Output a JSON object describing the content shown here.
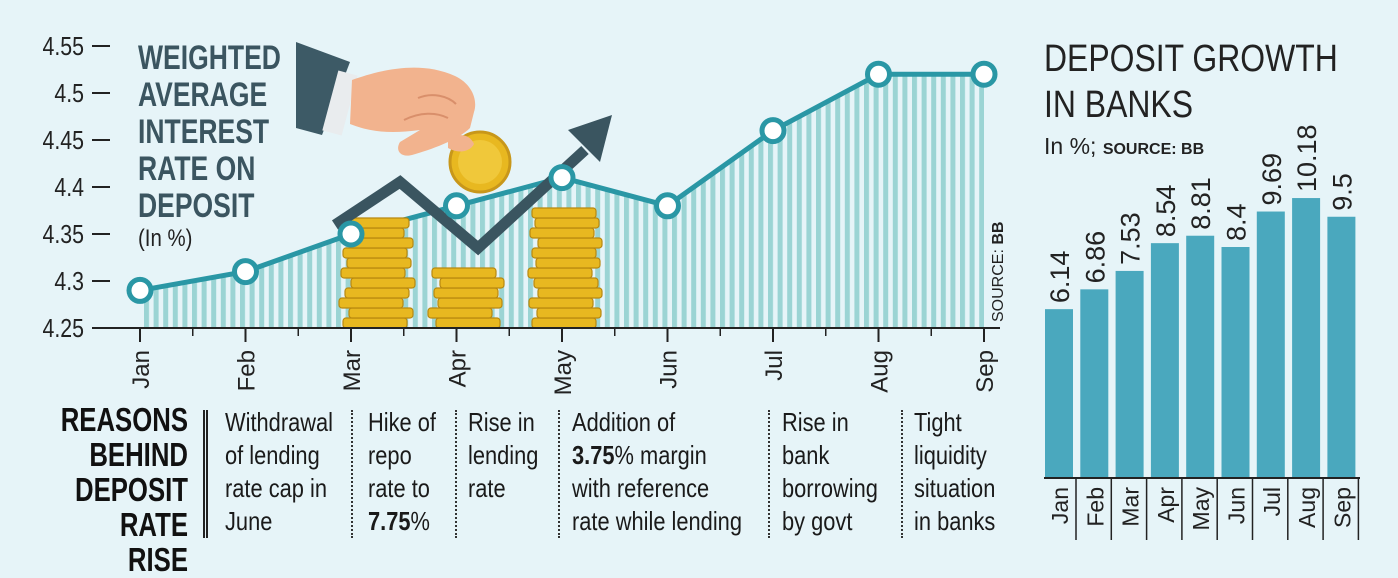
{
  "chart_data": [
    {
      "type": "area",
      "title": "WEIGHTED AVERAGE INTEREST RATE ON DEPOSIT",
      "title_lines": [
        "WEIGHTED",
        "AVERAGE",
        "INTEREST",
        "RATE ON",
        "DEPOSIT"
      ],
      "subtitle": "(In %)",
      "source": "SOURCE: BB",
      "source_prefix": "SOURCE:",
      "source_name": "BB",
      "categories": [
        "Jan",
        "Feb",
        "Mar",
        "Apr",
        "May",
        "Jun",
        "Jul",
        "Aug",
        "Sep"
      ],
      "values": [
        4.29,
        4.31,
        4.35,
        4.38,
        4.41,
        4.38,
        4.46,
        4.52,
        4.52
      ],
      "yticks": [
        "4.25",
        "4.3",
        "4.35",
        "4.4",
        "4.45",
        "4.5",
        "4.55"
      ],
      "ylim": [
        4.25,
        4.55
      ],
      "grid": false,
      "colors": {
        "line": "#2a97a5",
        "fill_stripe": "#9bd4d4",
        "marker_fill": "#ffffff"
      }
    },
    {
      "type": "bar",
      "title": "DEPOSIT GROWTH IN BANKS",
      "title_lines": [
        "DEPOSIT GROWTH",
        "IN BANKS"
      ],
      "subtitle_prefix": "In %;",
      "source": "SOURCE: BB",
      "categories": [
        "Jan",
        "Feb",
        "Mar",
        "Apr",
        "May",
        "Jun",
        "Jul",
        "Aug",
        "Sep"
      ],
      "values": [
        6.14,
        6.86,
        7.53,
        8.54,
        8.81,
        8.4,
        9.69,
        10.18,
        9.5
      ],
      "value_labels": [
        "6.14",
        "6.86",
        "7.53",
        "8.54",
        "8.81",
        "8.4",
        "9.69",
        "10.18",
        "9.5"
      ],
      "ylim": [
        0,
        12
      ],
      "grid": false,
      "colors": {
        "bar": "#4aa8be"
      }
    }
  ],
  "reasons": {
    "title_lines": [
      "REASONS",
      "BEHIND",
      "DEPOSIT",
      "RATE RISE"
    ],
    "items": [
      {
        "lines": [
          "Withdrawal",
          "of lending",
          "rate cap in",
          "June"
        ]
      },
      {
        "lines": [
          "Hike of",
          "repo",
          "rate to"
        ],
        "bold": "7.75",
        "suffix": "%"
      },
      {
        "lines": [
          "Rise in",
          "lending",
          "rate"
        ]
      },
      {
        "first": "Addition of",
        "bold": "3.75",
        "bold_suffix": "% margin",
        "rest": [
          "with reference",
          "rate while lending"
        ]
      },
      {
        "lines": [
          "Rise in",
          "bank",
          "borrowing",
          "by govt"
        ]
      },
      {
        "lines": [
          "Tight",
          "liquidity",
          "situation",
          "in banks"
        ]
      }
    ]
  },
  "colors": {
    "background": "#e6f4f8",
    "title_text": "#3b5560",
    "coin": "#e8b820",
    "arrow": "#3a5560",
    "hand": "#f2b38e"
  }
}
